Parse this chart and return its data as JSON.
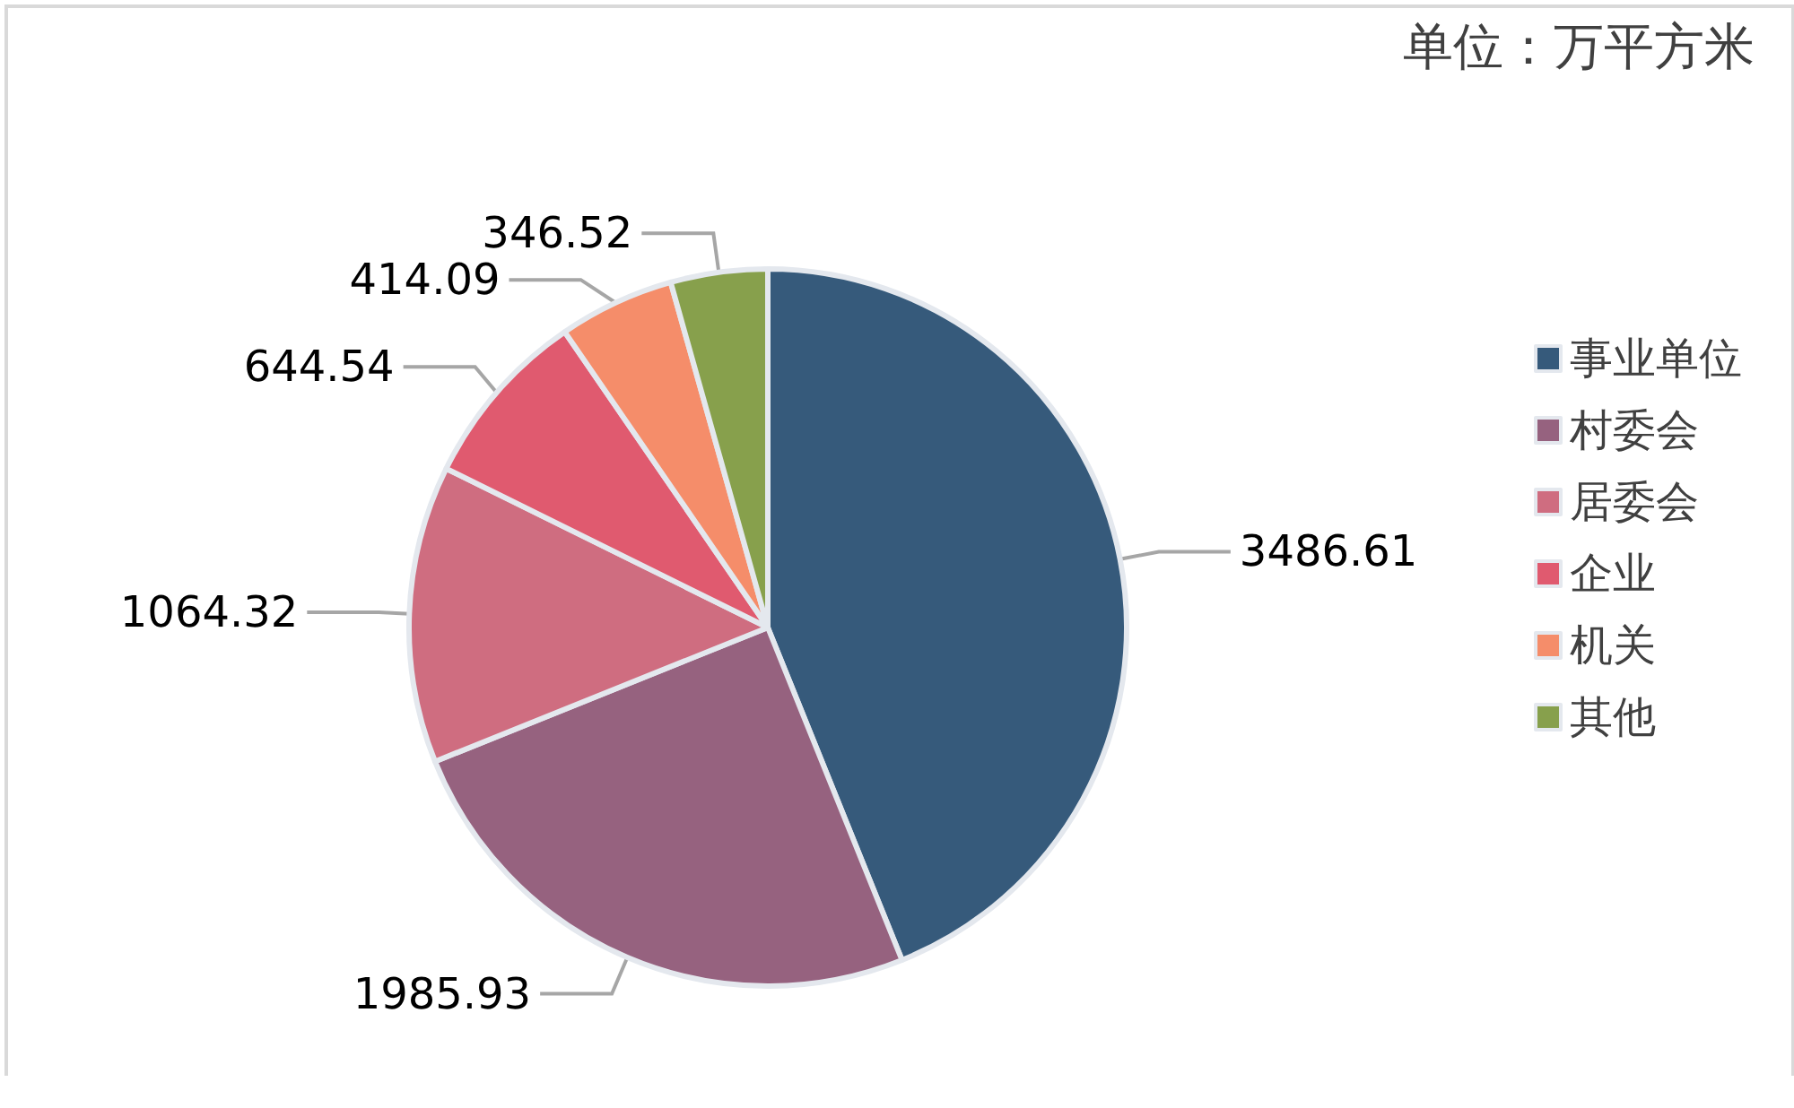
{
  "chart_data": {
    "type": "pie",
    "annotations": [
      "单位：万平方米"
    ],
    "categories": [
      "事业单位",
      "村委会",
      "居委会",
      "企业",
      "机关",
      "其他"
    ],
    "values": [
      3486.61,
      1985.93,
      1064.32,
      644.54,
      414.09,
      346.52
    ],
    "colors": [
      "#365a7b",
      "#96627f",
      "#cf6d80",
      "#e05a6f",
      "#f58d6a",
      "#87a04c"
    ],
    "data_labels": true,
    "legend": "right"
  }
}
